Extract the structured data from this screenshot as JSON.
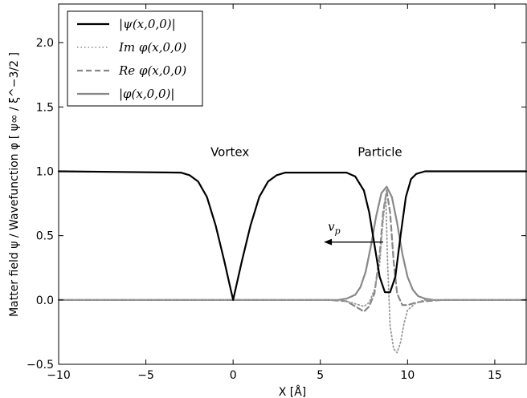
{
  "chart_data": {
    "type": "line",
    "xlabel": "X [Å]",
    "ylabel": "Matter field ψ / Wavefunction φ [ ψ∞ / ξ^−3/2 ]",
    "xlim": [
      -10,
      16.8
    ],
    "ylim": [
      -0.5,
      2.3
    ],
    "xticks": [
      -10,
      -5,
      0,
      5,
      10,
      15
    ],
    "xtick_labels": [
      "−10",
      "−5",
      "0",
      "5",
      "10",
      "15"
    ],
    "yticks": [
      -0.5,
      0.0,
      0.5,
      1.0,
      1.5,
      2.0
    ],
    "ytick_labels": [
      "−0.5",
      "0.0",
      "0.5",
      "1.0",
      "1.5",
      "2.0"
    ],
    "legend_position": "top-left",
    "annotations": [
      {
        "text": "Vortex",
        "x": 0,
        "y": 1.1
      },
      {
        "text": "Particle",
        "x": 8.6,
        "y": 1.1
      }
    ],
    "arrow": {
      "label": "v_p",
      "from": [
        8.6,
        0.45
      ],
      "to": [
        5.2,
        0.45
      ]
    },
    "series": [
      {
        "name": "|ψ(x,0,0)|",
        "color": "#000000",
        "style": "solid",
        "x": [
          -10,
          -3,
          -2.5,
          -2,
          -1.5,
          -1,
          -0.5,
          -0.2,
          0,
          0.2,
          0.5,
          1,
          1.5,
          2,
          2.5,
          3,
          6.5,
          7,
          7.5,
          7.8,
          8.1,
          8.4,
          8.7,
          9,
          9.3,
          9.6,
          9.9,
          10.2,
          10.5,
          11,
          16.8
        ],
        "y": [
          1.0,
          0.99,
          0.97,
          0.92,
          0.8,
          0.58,
          0.3,
          0.12,
          0.0,
          0.12,
          0.3,
          0.58,
          0.8,
          0.92,
          0.97,
          0.99,
          0.99,
          0.96,
          0.85,
          0.68,
          0.43,
          0.18,
          0.06,
          0.06,
          0.18,
          0.5,
          0.8,
          0.94,
          0.98,
          1.0,
          1.0
        ]
      },
      {
        "name": "Im φ(x,0,0)",
        "color": "#999999",
        "style": "dotted",
        "x": [
          -10,
          6,
          6.5,
          7,
          7.5,
          7.8,
          8.1,
          8.4,
          8.6,
          8.75,
          8.85,
          9.0,
          9.2,
          9.4,
          9.6,
          9.8,
          10.0,
          10.5,
          11,
          16.8
        ],
        "y": [
          0,
          0,
          -0.01,
          -0.03,
          -0.05,
          -0.02,
          0.08,
          0.28,
          0.62,
          0.82,
          0.3,
          -0.2,
          -0.38,
          -0.41,
          -0.33,
          -0.18,
          -0.08,
          -0.02,
          0,
          0
        ]
      },
      {
        "name": "Re φ(x,0,0)",
        "color": "#888888",
        "style": "dashed",
        "x": [
          -10,
          5.5,
          6.5,
          7,
          7.5,
          7.8,
          8.1,
          8.4,
          8.6,
          8.8,
          9.0,
          9.2,
          9.4,
          9.7,
          10.0,
          10.5,
          11,
          12,
          16.8
        ],
        "y": [
          0,
          0,
          -0.01,
          -0.05,
          -0.09,
          -0.05,
          0.05,
          0.35,
          0.68,
          0.85,
          0.68,
          0.3,
          0.05,
          -0.04,
          -0.04,
          -0.02,
          -0.01,
          0,
          0
        ]
      },
      {
        "name": "|φ(x,0,0)|",
        "color": "#888888",
        "style": "solid",
        "x": [
          -10,
          6,
          6.5,
          7,
          7.3,
          7.6,
          7.9,
          8.2,
          8.5,
          8.8,
          9.1,
          9.4,
          9.7,
          10.0,
          10.3,
          10.6,
          11,
          11.5,
          16.8
        ],
        "y": [
          0,
          0,
          0.01,
          0.04,
          0.1,
          0.22,
          0.42,
          0.65,
          0.83,
          0.88,
          0.8,
          0.6,
          0.36,
          0.18,
          0.08,
          0.03,
          0.01,
          0,
          0
        ]
      }
    ]
  }
}
